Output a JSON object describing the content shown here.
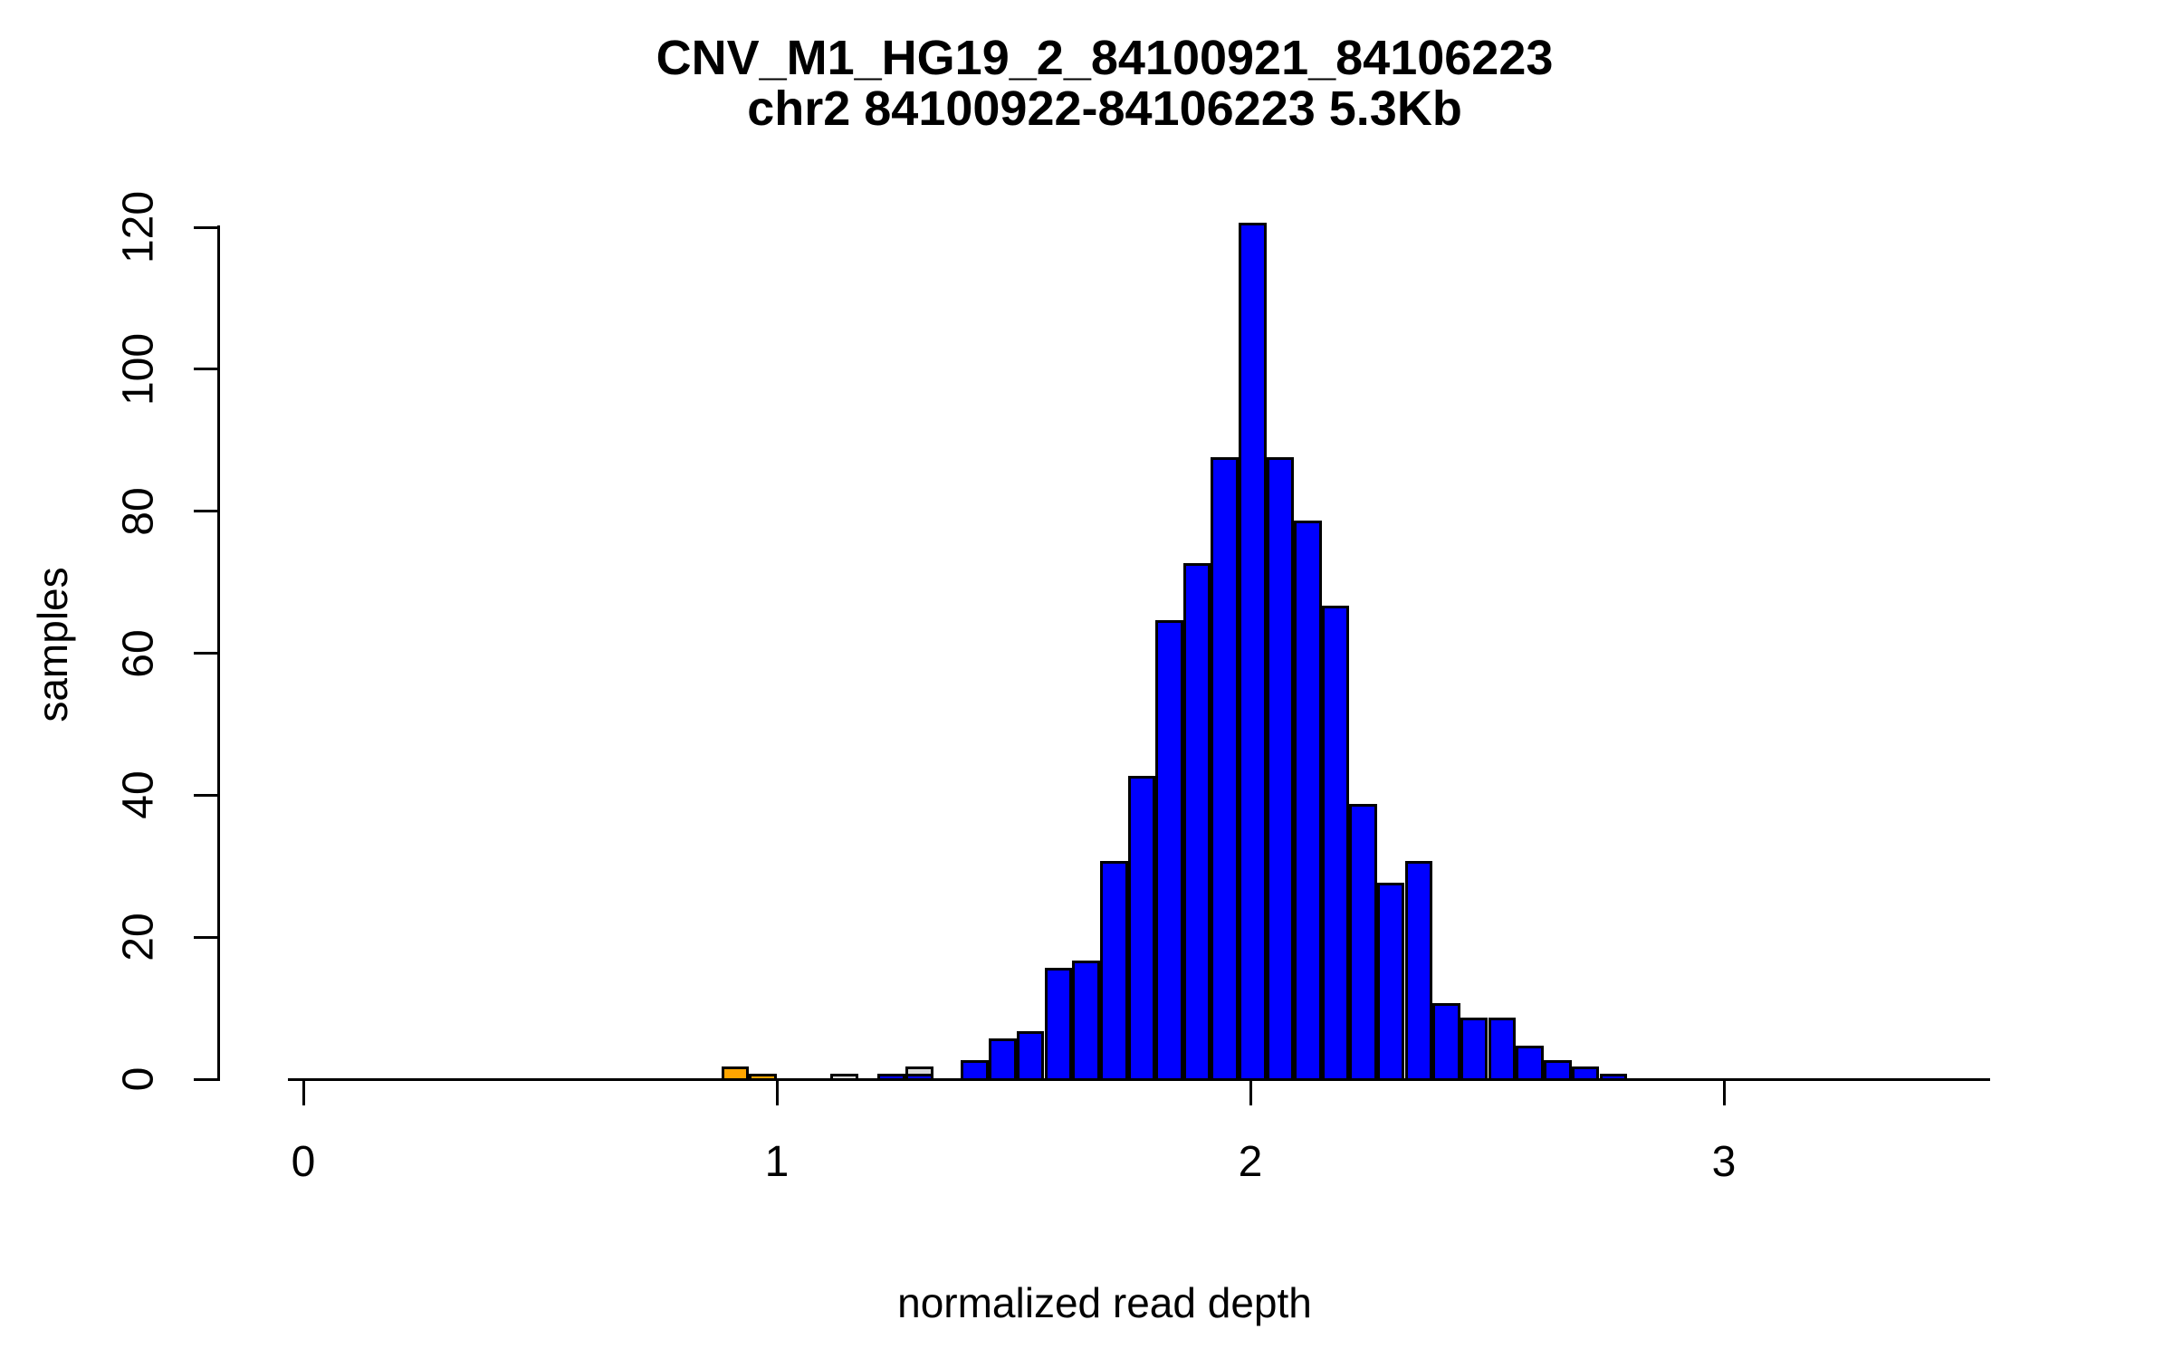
{
  "title": {
    "line1": "CNV_M1_HG19_2_84100921_84106223",
    "line2": "chr2 84100922-84106223 5.3Kb"
  },
  "axes": {
    "xlabel": "normalized read depth",
    "ylabel": "samples",
    "x_tick_labels": [
      "0",
      "1",
      "2",
      "3"
    ],
    "x_tick_values": [
      0,
      1,
      2,
      3
    ],
    "y_tick_labels": [
      "0",
      "20",
      "40",
      "60",
      "80",
      "100",
      "120"
    ],
    "y_tick_values": [
      0,
      20,
      40,
      60,
      80,
      100,
      120
    ]
  },
  "colors": {
    "blue": "#0000FF",
    "orange": "#FFA500",
    "gray": "#D9D9D9",
    "border": "#000000",
    "background": "#FFFFFF"
  },
  "chart_data": {
    "type": "bar",
    "subtype": "histogram",
    "title": "CNV_M1_HG19_2_84100921_84106223",
    "subtitle": "chr2 84100922-84106223 5.3Kb",
    "xlabel": "normalized read depth",
    "ylabel": "samples",
    "xlim": [
      -0.03,
      3.56
    ],
    "ylim": [
      0,
      121
    ],
    "grid": false,
    "legend": false,
    "bin_width": 0.0586,
    "bars": [
      {
        "x0": 0.883,
        "x1": 0.941,
        "count": 2,
        "color": "orange"
      },
      {
        "x0": 0.941,
        "x1": 1.0,
        "count": 1,
        "color": "orange"
      },
      {
        "x0": 1.113,
        "x1": 1.172,
        "count": 1,
        "color": "gray"
      },
      {
        "x0": 1.213,
        "x1": 1.272,
        "count": 1,
        "color": "blue"
      },
      {
        "x0": 1.272,
        "x1": 1.331,
        "count": 2,
        "color": "gray"
      },
      {
        "x0": 1.272,
        "x1": 1.331,
        "count": 1,
        "color": "blue"
      },
      {
        "x0": 1.389,
        "x1": 1.448,
        "count": 3,
        "color": "blue"
      },
      {
        "x0": 1.448,
        "x1": 1.506,
        "count": 6,
        "color": "blue"
      },
      {
        "x0": 1.506,
        "x1": 1.565,
        "count": 7,
        "color": "blue"
      },
      {
        "x0": 1.565,
        "x1": 1.624,
        "count": 16,
        "color": "blue"
      },
      {
        "x0": 1.624,
        "x1": 1.682,
        "count": 17,
        "color": "blue"
      },
      {
        "x0": 1.682,
        "x1": 1.741,
        "count": 31,
        "color": "blue"
      },
      {
        "x0": 1.741,
        "x1": 1.799,
        "count": 43,
        "color": "blue"
      },
      {
        "x0": 1.799,
        "x1": 1.858,
        "count": 65,
        "color": "blue"
      },
      {
        "x0": 1.858,
        "x1": 1.916,
        "count": 73,
        "color": "blue"
      },
      {
        "x0": 1.916,
        "x1": 1.975,
        "count": 88,
        "color": "blue"
      },
      {
        "x0": 1.975,
        "x1": 2.034,
        "count": 121,
        "color": "blue"
      },
      {
        "x0": 2.034,
        "x1": 2.092,
        "count": 88,
        "color": "blue"
      },
      {
        "x0": 2.092,
        "x1": 2.151,
        "count": 79,
        "color": "blue"
      },
      {
        "x0": 2.151,
        "x1": 2.209,
        "count": 67,
        "color": "blue"
      },
      {
        "x0": 2.209,
        "x1": 2.268,
        "count": 39,
        "color": "blue"
      },
      {
        "x0": 2.268,
        "x1": 2.326,
        "count": 28,
        "color": "blue"
      },
      {
        "x0": 2.326,
        "x1": 2.385,
        "count": 31,
        "color": "blue"
      },
      {
        "x0": 2.385,
        "x1": 2.444,
        "count": 11,
        "color": "blue"
      },
      {
        "x0": 2.444,
        "x1": 2.502,
        "count": 9,
        "color": "blue"
      },
      {
        "x0": 2.502,
        "x1": 2.561,
        "count": 9,
        "color": "blue"
      },
      {
        "x0": 2.561,
        "x1": 2.619,
        "count": 5,
        "color": "blue"
      },
      {
        "x0": 2.619,
        "x1": 2.678,
        "count": 3,
        "color": "blue"
      },
      {
        "x0": 2.678,
        "x1": 2.737,
        "count": 2,
        "color": "blue"
      },
      {
        "x0": 2.737,
        "x1": 2.795,
        "count": 1,
        "color": "blue"
      }
    ]
  }
}
